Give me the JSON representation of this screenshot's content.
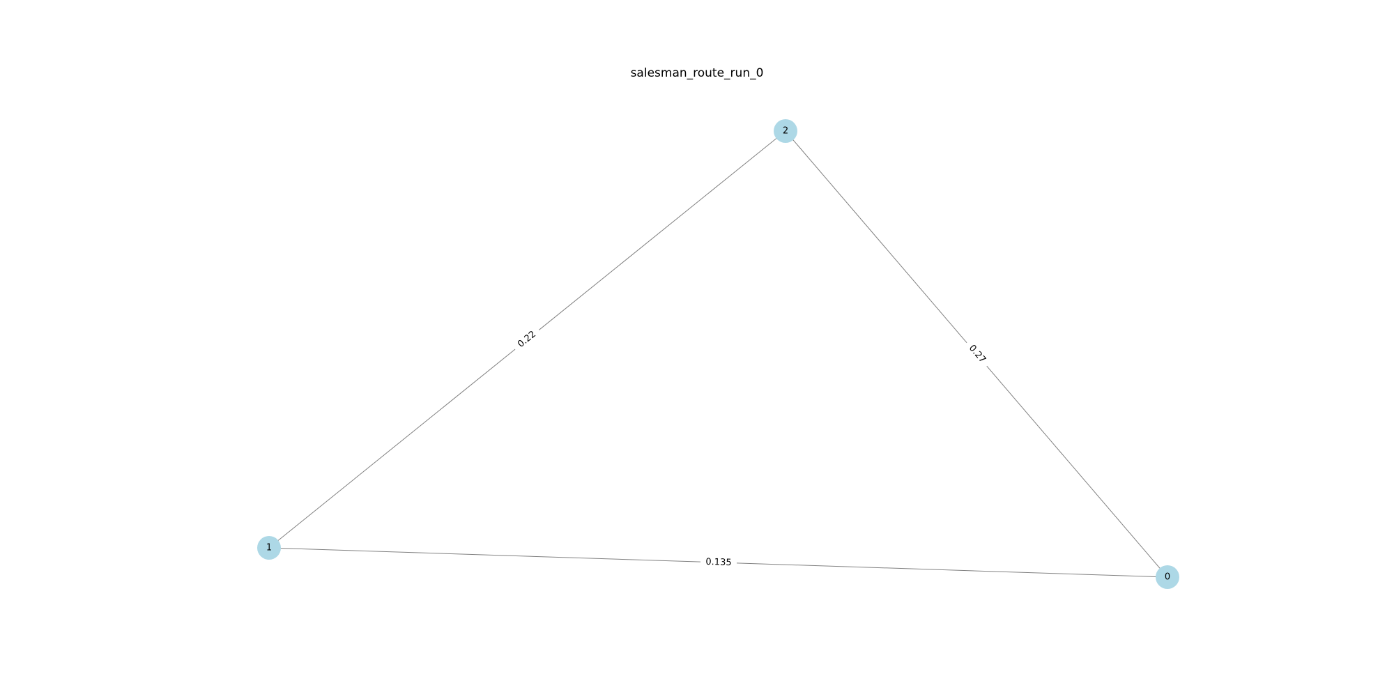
{
  "title": "salesman_route_run_0",
  "style": {
    "node_color": "#add8e6",
    "edge_color": "#808080",
    "label_color": "#000000",
    "background": "#ffffff"
  },
  "nodes": [
    {
      "id": "0",
      "label": "0"
    },
    {
      "id": "1",
      "label": "1"
    },
    {
      "id": "2",
      "label": "2"
    }
  ],
  "edges": [
    {
      "source": "1",
      "target": "2",
      "weight": "0.22"
    },
    {
      "source": "2",
      "target": "0",
      "weight": "0.27"
    },
    {
      "source": "1",
      "target": "0",
      "weight": "0.135"
    }
  ]
}
